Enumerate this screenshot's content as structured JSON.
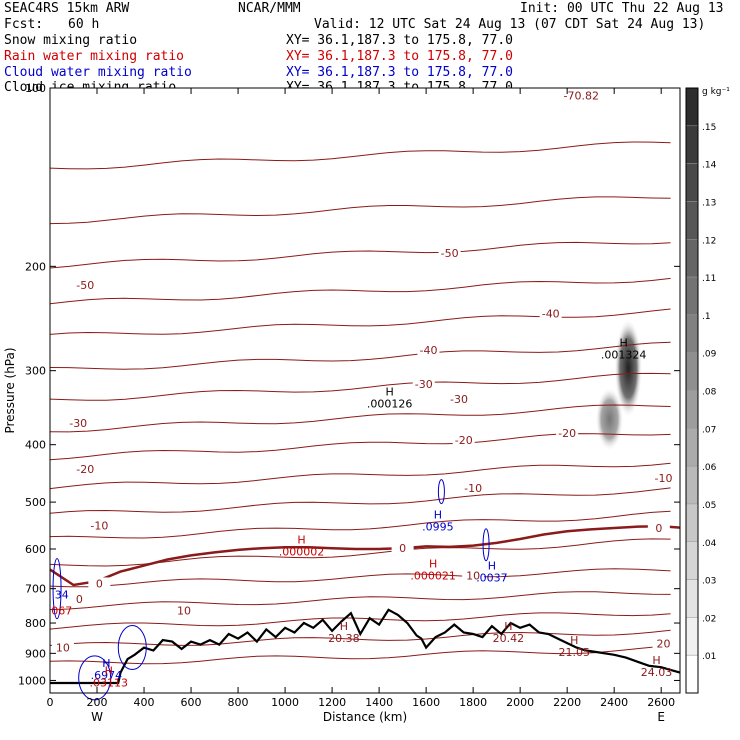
{
  "header": {
    "title": "SEAC4RS 15km ARW",
    "center": "NCAR/MMM",
    "init": "Init: 00 UTC Thu 22 Aug 13",
    "fcst_label": "Fcst:",
    "fcst_value": "60 h",
    "valid": "Valid: 12 UTC Sat 24 Aug 13 (07 CDT Sat 24 Aug 13)"
  },
  "fields": [
    {
      "name": "Snow mixing ratio",
      "xy": "XY=  36.1,187.3 to 175.8, 77.0",
      "color": "#000000"
    },
    {
      "name": "Rain water mixing ratio",
      "xy": "XY=  36.1,187.3 to 175.8, 77.0",
      "color": "#d00000"
    },
    {
      "name": "Cloud water mixing ratio",
      "xy": "XY=  36.1,187.3 to 175.8, 77.0",
      "color": "#0000cc"
    },
    {
      "name": "Cloud ice mixing ratio",
      "xy": "XY=  36.1,187.3 to 175.8, 77.0",
      "color": "#000000"
    }
  ],
  "colorbar": {
    "unit": "g kg⁻¹",
    "ticks": [
      ".15",
      ".14",
      ".13",
      ".12",
      ".11",
      ".1",
      ".09",
      ".08",
      ".07",
      ".06",
      ".05",
      ".04",
      ".03",
      ".02",
      ".01"
    ]
  },
  "chart_data": {
    "type": "cross-section",
    "xlabel": "Distance (km)",
    "ylabel": "Pressure (hPa)",
    "xlim": [
      0,
      2680
    ],
    "ylim": [
      1050,
      100
    ],
    "y_scale": "log",
    "x_ticks": [
      "0",
      "200",
      "400",
      "600",
      "800",
      "1000",
      "1200",
      "1400",
      "1600",
      "1800",
      "2000",
      "2200",
      "2400",
      "2600"
    ],
    "x_tick_values": [
      0,
      200,
      400,
      600,
      800,
      1000,
      1200,
      1400,
      1600,
      1800,
      2000,
      2200,
      2400,
      2600
    ],
    "y_ticks": [
      "200",
      "300",
      "400",
      "500",
      "600",
      "700",
      "800",
      "900",
      "1000"
    ],
    "y_tick_values": [
      200,
      300,
      400,
      500,
      600,
      700,
      800,
      900,
      1000
    ],
    "y_top_label": "100",
    "end_labels": {
      "left": "W",
      "right": "E"
    },
    "temperature_contour_labels": [
      {
        "text": "-70.82",
        "x": 2260,
        "p": 103,
        "color": "#8b1a1a"
      },
      {
        "text": "-50",
        "x": 1700,
        "p": 190,
        "color": "#8b1a1a"
      },
      {
        "text": "-50",
        "x": 150,
        "p": 215,
        "color": "#8b1a1a"
      },
      {
        "text": "-40",
        "x": 2130,
        "p": 240,
        "color": "#8b1a1a"
      },
      {
        "text": "-40",
        "x": 1610,
        "p": 277,
        "color": "#8b1a1a"
      },
      {
        "text": "-30",
        "x": 1590,
        "p": 316,
        "color": "#8b1a1a"
      },
      {
        "text": "-30",
        "x": 1740,
        "p": 335,
        "color": "#8b1a1a"
      },
      {
        "text": "-30",
        "x": 120,
        "p": 368,
        "color": "#8b1a1a"
      },
      {
        "text": "-20",
        "x": 1760,
        "p": 393,
        "color": "#8b1a1a"
      },
      {
        "text": "-20",
        "x": 2200,
        "p": 382,
        "color": "#8b1a1a"
      },
      {
        "text": "-20",
        "x": 150,
        "p": 440,
        "color": "#8b1a1a"
      },
      {
        "text": "-10",
        "x": 2610,
        "p": 455,
        "color": "#8b1a1a"
      },
      {
        "text": "-10",
        "x": 1800,
        "p": 473,
        "color": "#8b1a1a"
      },
      {
        "text": "-10",
        "x": 210,
        "p": 548,
        "color": "#8b1a1a"
      },
      {
        "text": "0",
        "x": 2590,
        "p": 553,
        "color": "#8b1a1a"
      },
      {
        "text": "0",
        "x": 1500,
        "p": 598,
        "color": "#8b1a1a"
      },
      {
        "text": "0",
        "x": 210,
        "p": 686,
        "color": "#8b1a1a"
      },
      {
        "text": "0",
        "x": 125,
        "p": 728,
        "color": "#8b1a1a"
      },
      {
        "text": "10",
        "x": 1800,
        "p": 665,
        "color": "#8b1a1a"
      },
      {
        "text": "10",
        "x": 570,
        "p": 762,
        "color": "#8b1a1a"
      },
      {
        "text": "10",
        "x": 55,
        "p": 880,
        "color": "#8b1a1a"
      },
      {
        "text": "20",
        "x": 2610,
        "p": 866,
        "color": "#8b1a1a"
      }
    ],
    "extrema_markers": [
      {
        "mark": "H",
        "value": ".001324",
        "x": 2440,
        "p": 275,
        "color": "#000000"
      },
      {
        "mark": "H",
        "value": ".000126",
        "x": 1445,
        "p": 333,
        "color": "#000000"
      },
      {
        "mark": "H",
        "value": ".0995",
        "x": 1650,
        "p": 537,
        "color": "#0000cc"
      },
      {
        "mark": "H",
        "value": ".000002",
        "x": 1070,
        "p": 592,
        "color": "#cc0000"
      },
      {
        "mark": "H",
        "value": ".000021",
        "x": 1630,
        "p": 650,
        "color": "#cc0000"
      },
      {
        "mark": "H",
        "value": ".0037",
        "x": 1880,
        "p": 655,
        "color": "#0000cc"
      },
      {
        "mark": "H",
        "value": "20.38",
        "x": 1250,
        "p": 828,
        "color": "#8b1a1a"
      },
      {
        "mark": "H",
        "value": "20.42",
        "x": 1950,
        "p": 828,
        "color": "#8b1a1a"
      },
      {
        "mark": "H",
        "value": "21.05",
        "x": 2230,
        "p": 875,
        "color": "#8b1a1a"
      },
      {
        "mark": "H",
        "value": "24.03",
        "x": 2580,
        "p": 945,
        "color": "#8b1a1a"
      },
      {
        "mark": "H",
        "value": ".6974",
        "x": 240,
        "p": 957,
        "color": "#0000cc"
      },
      {
        "mark": "H",
        "value": ".03113",
        "x": 250,
        "p": 985,
        "color": "#cc0000"
      },
      {
        "mark": "",
        "value": "34",
        "x": 50,
        "p": 700,
        "color": "#0000cc"
      },
      {
        "mark": "",
        "value": "067",
        "x": 50,
        "p": 745,
        "color": "#cc0000"
      }
    ],
    "freezing_level": [
      [
        0,
        650
      ],
      [
        100,
        690
      ],
      [
        200,
        680
      ],
      [
        300,
        655
      ],
      [
        400,
        640
      ],
      [
        500,
        625
      ],
      [
        600,
        615
      ],
      [
        700,
        608
      ],
      [
        800,
        602
      ],
      [
        900,
        598
      ],
      [
        1000,
        596
      ],
      [
        1100,
        596
      ],
      [
        1200,
        598
      ],
      [
        1300,
        600
      ],
      [
        1400,
        600
      ],
      [
        1500,
        598
      ],
      [
        1600,
        594
      ],
      [
        1700,
        595
      ],
      [
        1800,
        592
      ],
      [
        1900,
        586
      ],
      [
        2000,
        577
      ],
      [
        2100,
        567
      ],
      [
        2200,
        560
      ],
      [
        2300,
        556
      ],
      [
        2400,
        553
      ],
      [
        2500,
        550
      ],
      [
        2600,
        549
      ],
      [
        2680,
        552
      ]
    ],
    "terrain": [
      [
        0,
        1010
      ],
      [
        290,
        1010
      ],
      [
        300,
        970
      ],
      [
        330,
        920
      ],
      [
        360,
        905
      ],
      [
        400,
        880
      ],
      [
        440,
        890
      ],
      [
        480,
        855
      ],
      [
        520,
        860
      ],
      [
        560,
        885
      ],
      [
        600,
        860
      ],
      [
        640,
        870
      ],
      [
        680,
        855
      ],
      [
        720,
        870
      ],
      [
        760,
        835
      ],
      [
        800,
        850
      ],
      [
        840,
        830
      ],
      [
        880,
        860
      ],
      [
        920,
        820
      ],
      [
        960,
        845
      ],
      [
        1000,
        815
      ],
      [
        1040,
        830
      ],
      [
        1080,
        800
      ],
      [
        1120,
        815
      ],
      [
        1160,
        790
      ],
      [
        1200,
        825
      ],
      [
        1240,
        795
      ],
      [
        1280,
        770
      ],
      [
        1320,
        835
      ],
      [
        1360,
        785
      ],
      [
        1400,
        805
      ],
      [
        1440,
        760
      ],
      [
        1480,
        775
      ],
      [
        1520,
        800
      ],
      [
        1560,
        840
      ],
      [
        1580,
        850
      ],
      [
        1600,
        880
      ],
      [
        1640,
        845
      ],
      [
        1680,
        830
      ],
      [
        1720,
        805
      ],
      [
        1760,
        830
      ],
      [
        1800,
        835
      ],
      [
        1840,
        845
      ],
      [
        1880,
        810
      ],
      [
        1920,
        835
      ],
      [
        1960,
        800
      ],
      [
        2000,
        815
      ],
      [
        2040,
        805
      ],
      [
        2080,
        830
      ],
      [
        2120,
        835
      ],
      [
        2160,
        850
      ],
      [
        2200,
        865
      ],
      [
        2240,
        880
      ],
      [
        2280,
        890
      ],
      [
        2320,
        895
      ],
      [
        2400,
        905
      ],
      [
        2450,
        915
      ],
      [
        2500,
        930
      ],
      [
        2550,
        945
      ],
      [
        2600,
        950
      ],
      [
        2640,
        960
      ],
      [
        2680,
        970
      ]
    ],
    "snow_shading": [
      {
        "x": 2460,
        "p_top": 245,
        "p_bot": 360,
        "value": 0.13
      },
      {
        "x": 2380,
        "p_top": 320,
        "p_bot": 410,
        "value": 0.08
      }
    ]
  }
}
